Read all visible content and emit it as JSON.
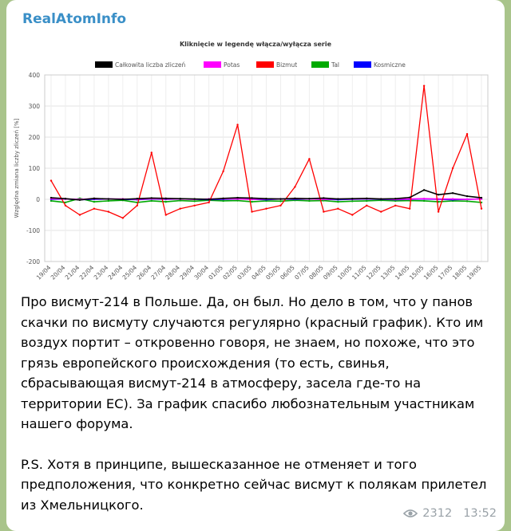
{
  "channel": {
    "name": "RealAtomInfo"
  },
  "chart_data": {
    "type": "line",
    "title": "Kliknięcie w legendę włącza/wyłącza serie",
    "ylabel": "Względna zmiana liczby zliczeń [%]",
    "ylim": [
      -200,
      400
    ],
    "yticks": [
      "400",
      "300",
      "200",
      "100",
      "0",
      "-100",
      "-200"
    ],
    "categories": [
      "19/04",
      "20/04",
      "21/04",
      "22/04",
      "23/04",
      "24/04",
      "25/04",
      "26/04",
      "27/04",
      "28/04",
      "29/04",
      "30/04",
      "01/05",
      "02/05",
      "03/05",
      "04/05",
      "05/05",
      "06/05",
      "07/05",
      "08/05",
      "09/05",
      "10/05",
      "11/05",
      "12/05",
      "13/05",
      "14/05",
      "15/05",
      "16/05",
      "17/05",
      "18/05",
      "19/05"
    ],
    "legend": [
      "Całkowita liczba zliczeń",
      "Potas",
      "Bizmut",
      "Tal",
      "Kosmiczne"
    ],
    "series": [
      {
        "name": "Całkowita liczba zliczeń",
        "color": "#000000",
        "values": [
          5,
          2,
          -2,
          3,
          1,
          0,
          2,
          4,
          3,
          2,
          1,
          0,
          3,
          5,
          4,
          2,
          1,
          3,
          2,
          4,
          1,
          2,
          3,
          1,
          2,
          6,
          30,
          15,
          20,
          10,
          5
        ]
      },
      {
        "name": "Potas",
        "color": "#ff00ff",
        "values": [
          2,
          1,
          0,
          2,
          1,
          1,
          0,
          2,
          1,
          1,
          0,
          1,
          2,
          1,
          0,
          1,
          1,
          2,
          1,
          0,
          1,
          1,
          2,
          1,
          0,
          1,
          2,
          1,
          1,
          0,
          1
        ]
      },
      {
        "name": "Bizmut",
        "color": "#ff0000",
        "values": [
          60,
          -20,
          -50,
          -30,
          -40,
          -60,
          -20,
          150,
          -50,
          -30,
          -20,
          -10,
          90,
          240,
          -40,
          -30,
          -20,
          40,
          130,
          -40,
          -30,
          -50,
          -20,
          -40,
          -20,
          -30,
          365,
          -40,
          100,
          210,
          -30
        ]
      },
      {
        "name": "Tal",
        "color": "#00aa00",
        "values": [
          -5,
          -10,
          3,
          -8,
          -5,
          -3,
          -10,
          -5,
          -8,
          -4,
          -6,
          -3,
          -5,
          -4,
          -8,
          -5,
          -6,
          -3,
          -5,
          -4,
          -8,
          -6,
          -5,
          -3,
          -5,
          -4,
          -5,
          -8,
          -5,
          -6,
          -10
        ]
      },
      {
        "name": "Kosmiczne",
        "color": "#0000ff",
        "values": [
          0,
          1,
          -1,
          0,
          1,
          0,
          -1,
          1,
          0,
          1,
          0,
          -1,
          0,
          1,
          0,
          -1,
          1,
          0,
          1,
          0,
          -1,
          0,
          1,
          0,
          -1,
          0,
          1,
          0,
          -1,
          0,
          1
        ]
      }
    ],
    "grid": true
  },
  "message": {
    "paragraph1": "Про висмут-214 в Польше. Да, он был. Но дело в том, что у панов скачки по висмуту случаются регулярно (красный график). Кто им воздух портит – откровенно говоря, не знаем, но похоже, что это грязь европейского происхождения (то есть, свинья, сбрасывающая висмут-214 в атмосферу, засела где-то на территории ЕС). За график спасибо любознательным участникам нашего форума.",
    "paragraph2": "P.S. Хотя в принципе, вышесказанное не отменяет и того предположения, что конкретно сейчас висмут к полякам прилетел из Хмельницкого."
  },
  "meta": {
    "views": "2312",
    "time": "13:52"
  }
}
